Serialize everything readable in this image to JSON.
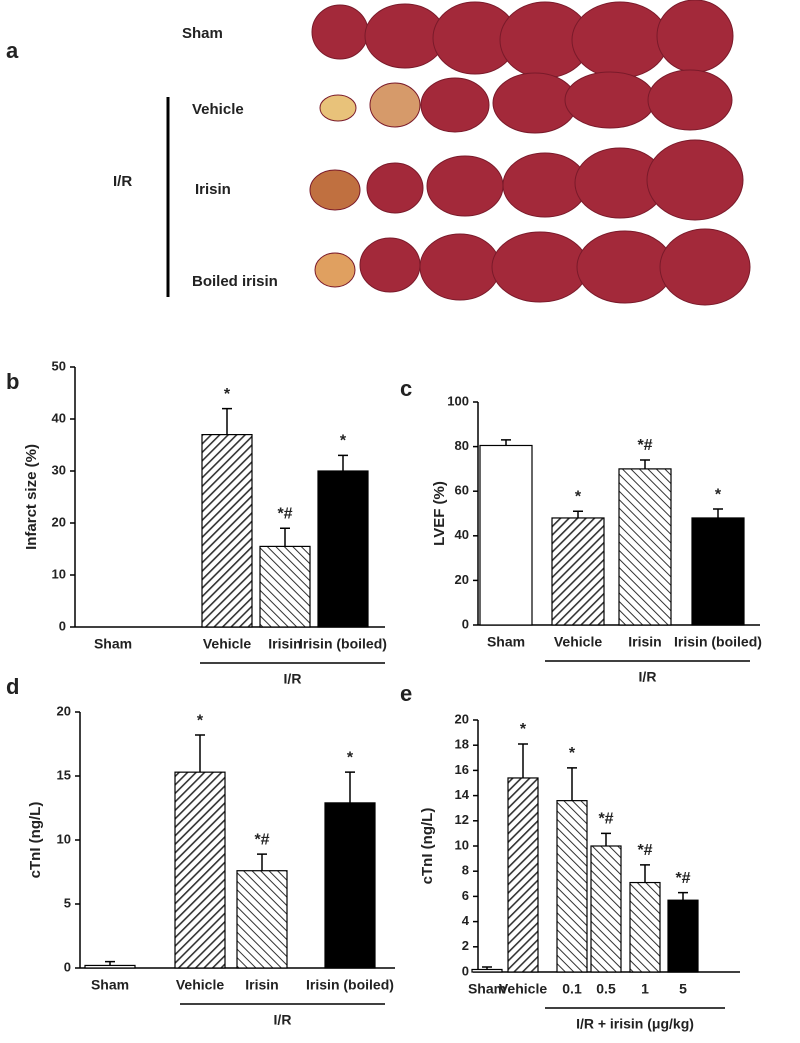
{
  "panel_a": {
    "label": "a",
    "rows": [
      "Sham",
      "Vehicle",
      "Irisin",
      "Boiled  irisin"
    ],
    "group": "I/R"
  },
  "chart_data": [
    {
      "type": "bar",
      "panel": "b",
      "ylabel": "Infarct size (%)",
      "categories": [
        "Sham",
        "Vehicle",
        "Irisin",
        "Irisin (boiled)"
      ],
      "values": [
        0,
        37,
        15.5,
        30
      ],
      "errors": [
        null,
        5,
        3.5,
        3
      ],
      "annotations": [
        null,
        "*",
        "*#",
        "*"
      ],
      "fills": [
        "white",
        "hatch-dense",
        "hatch-light",
        "black"
      ],
      "group_label": "I/R",
      "ylim": [
        0,
        50
      ],
      "yticks": [
        0,
        10,
        20,
        30,
        40,
        50
      ]
    },
    {
      "type": "bar",
      "panel": "c",
      "ylabel": "LVEF (%)",
      "categories": [
        "Sham",
        "Vehicle",
        "Irisin",
        "Irisin (boiled)"
      ],
      "values": [
        80.5,
        48,
        70,
        48
      ],
      "errors": [
        2.5,
        3,
        4,
        4
      ],
      "annotations": [
        null,
        "*",
        "*#",
        "*"
      ],
      "fills": [
        "white",
        "hatch-dense",
        "hatch-light",
        "black"
      ],
      "group_label": "I/R",
      "ylim": [
        0,
        100
      ],
      "yticks": [
        0,
        20,
        40,
        60,
        80,
        100
      ]
    },
    {
      "type": "bar",
      "panel": "d",
      "ylabel": "cTnI (ng/L)",
      "categories": [
        "Sham",
        "Vehicle",
        "Irisin",
        "Irisin (boiled)"
      ],
      "values": [
        0.2,
        15.3,
        7.6,
        12.9
      ],
      "errors": [
        0.3,
        2.9,
        1.3,
        2.4
      ],
      "annotations": [
        null,
        "*",
        "*#",
        "*"
      ],
      "fills": [
        "white",
        "hatch-dense",
        "hatch-light",
        "black"
      ],
      "group_label": "I/R",
      "ylim": [
        0,
        20
      ],
      "yticks": [
        0,
        5,
        10,
        15,
        20
      ]
    },
    {
      "type": "bar",
      "panel": "e",
      "ylabel": "cTnI (ng/L)",
      "categories": [
        "Sham",
        "Vehicle",
        "0.1",
        "0.5",
        "1",
        "5"
      ],
      "values": [
        0.2,
        15.4,
        13.6,
        10,
        7.1,
        5.7
      ],
      "errors": [
        0.2,
        2.7,
        2.6,
        1,
        1.4,
        0.6
      ],
      "annotations": [
        null,
        "*",
        "*",
        "*#",
        "*#",
        "*#"
      ],
      "fills": [
        "white",
        "hatch-dense",
        "hatch-light",
        "hatch-light",
        "hatch-light",
        "black"
      ],
      "group_label": "I/R + irisin (μg/kg)",
      "ylim": [
        0,
        20
      ],
      "yticks": [
        0,
        2,
        4,
        6,
        8,
        10,
        12,
        14,
        16,
        18,
        20
      ]
    }
  ]
}
